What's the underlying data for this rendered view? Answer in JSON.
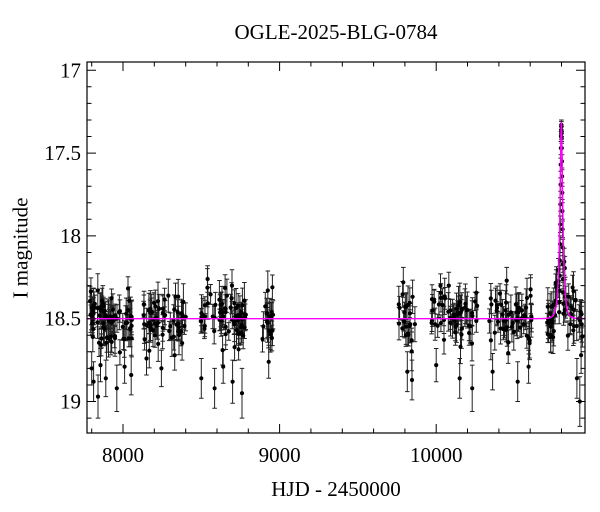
{
  "chart_data": {
    "type": "scatter",
    "title": "OGLE-2025-BLG-0784",
    "xlabel": "HJD - 2450000",
    "ylabel": "I magnitude",
    "xlim": [
      7770,
      10950
    ],
    "ylim_mag": [
      16.95,
      19.19
    ],
    "y_axis_inverted": true,
    "x_major_ticks": [
      {
        "value": 8000,
        "label": "8000"
      },
      {
        "value": 9000,
        "label": "9000"
      },
      {
        "value": 10000,
        "label": "10000"
      }
    ],
    "x_minor_ticks": {
      "start": 7800,
      "step": 200,
      "end": 10900
    },
    "y_major_ticks": [
      {
        "value": 17,
        "label": "17"
      },
      {
        "value": 17.5,
        "label": "17.5"
      },
      {
        "value": 18,
        "label": "18"
      },
      {
        "value": 18.5,
        "label": "18.5"
      },
      {
        "value": 19,
        "label": "19"
      }
    ],
    "y_minor_ticks": {
      "start": 17.0,
      "step": 0.1,
      "end": 19.1
    },
    "baseline_mag": 18.5,
    "colors": {
      "background": "#ffffff",
      "frame": "#000000",
      "data_points": "#000000",
      "error_bars": "#222222",
      "model_curve": "#ff00ff"
    },
    "model": {
      "type": "paczynski_point_lens",
      "t0": 10799,
      "tE": 18,
      "u0": 0.35,
      "blend_fs": 1.0,
      "peak_mag": 17.33,
      "baseline_mag": 18.5
    },
    "seasons": [
      {
        "t_start": 7783,
        "t_end": 8070,
        "n": 82,
        "sigma": 0.08
      },
      {
        "t_start": 8128,
        "t_end": 8402,
        "n": 60,
        "sigma": 0.075
      },
      {
        "t_start": 8485,
        "t_end": 8785,
        "n": 68,
        "sigma": 0.09
      },
      {
        "t_start": 8888,
        "t_end": 8958,
        "n": 19,
        "sigma": 0.075
      },
      {
        "t_start": 9756,
        "t_end": 9864,
        "n": 23,
        "sigma": 0.085
      },
      {
        "t_start": 9967,
        "t_end": 10261,
        "n": 55,
        "sigma": 0.08
      },
      {
        "t_start": 10337,
        "t_end": 10612,
        "n": 55,
        "sigma": 0.08
      },
      {
        "t_start": 10700,
        "t_end": 10783,
        "n": 24,
        "sigma": 0.08
      },
      {
        "t_start": 10816,
        "t_end": 10944,
        "n": 26,
        "sigma": 0.085
      }
    ],
    "peak_points": [
      [
        10785,
        18.46,
        0.07
      ],
      [
        10786.5,
        18.4,
        0.06
      ],
      [
        10788,
        18.33,
        0.06
      ],
      [
        10789,
        18.24,
        0.06
      ],
      [
        10790,
        18.15,
        0.05
      ],
      [
        10791,
        18.05,
        0.05
      ],
      [
        10792,
        17.93,
        0.05
      ],
      [
        10793,
        17.81,
        0.04
      ],
      [
        10794,
        17.69,
        0.04
      ],
      [
        10795,
        17.57,
        0.04
      ],
      [
        10796,
        17.47,
        0.04
      ],
      [
        10797,
        17.4,
        0.03
      ],
      [
        10798,
        17.36,
        0.03
      ],
      [
        10798.5,
        17.38,
        0.04
      ],
      [
        10799,
        17.34,
        0.03
      ],
      [
        10799.6,
        17.33,
        0.03
      ],
      [
        10800.3,
        17.37,
        0.03
      ],
      [
        10801,
        17.41,
        0.03
      ],
      [
        10802,
        17.47,
        0.04
      ],
      [
        10803,
        17.55,
        0.04
      ],
      [
        10804,
        17.64,
        0.04
      ],
      [
        10805,
        17.74,
        0.04
      ],
      [
        10806,
        17.85,
        0.05
      ],
      [
        10807,
        17.96,
        0.05
      ],
      [
        10808,
        18.07,
        0.05
      ],
      [
        10809,
        18.17,
        0.05
      ],
      [
        10810,
        18.26,
        0.06
      ],
      [
        10811,
        18.34,
        0.06
      ],
      [
        10812,
        18.41,
        0.06
      ],
      [
        10813.5,
        18.47,
        0.07
      ]
    ],
    "outlier_points": [
      [
        7800,
        18.8,
        0.1
      ],
      [
        7812,
        18.88,
        0.12
      ],
      [
        7840,
        18.97,
        0.13
      ],
      [
        7856,
        18.78,
        0.1
      ],
      [
        7890,
        18.86,
        0.11
      ],
      [
        7960,
        18.92,
        0.14
      ],
      [
        8010,
        18.79,
        0.1
      ],
      [
        8052,
        18.84,
        0.12
      ],
      [
        8150,
        18.74,
        0.1
      ],
      [
        8245,
        18.8,
        0.11
      ],
      [
        8330,
        18.72,
        0.09
      ],
      [
        8500,
        18.86,
        0.12
      ],
      [
        8540,
        18.26,
        0.08
      ],
      [
        8585,
        18.92,
        0.12
      ],
      [
        8640,
        18.79,
        0.1
      ],
      [
        8700,
        18.88,
        0.13
      ],
      [
        8760,
        18.95,
        0.15
      ],
      [
        8930,
        18.76,
        0.1
      ],
      [
        9790,
        18.28,
        0.09
      ],
      [
        9815,
        18.82,
        0.12
      ],
      [
        9845,
        18.87,
        0.12
      ],
      [
        10000,
        18.78,
        0.1
      ],
      [
        10080,
        18.3,
        0.08
      ],
      [
        10150,
        18.86,
        0.12
      ],
      [
        10230,
        18.92,
        0.14
      ],
      [
        10360,
        18.82,
        0.11
      ],
      [
        10450,
        18.27,
        0.08
      ],
      [
        10520,
        18.88,
        0.12
      ],
      [
        10590,
        18.79,
        0.1
      ],
      [
        10898,
        18.86,
        0.12
      ],
      [
        10917,
        19.0,
        0.15
      ],
      [
        10925,
        18.72,
        0.11
      ]
    ],
    "err_range": [
      0.05,
      0.12
    ],
    "noise_seed": 20250784
  }
}
